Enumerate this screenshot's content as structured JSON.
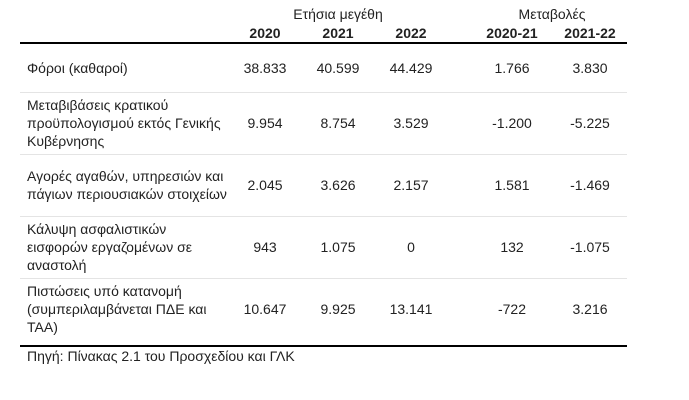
{
  "table": {
    "group_headers": [
      "Ετήσια μεγέθη",
      "Μεταβολές"
    ],
    "columns": [
      "2020",
      "2021",
      "2022",
      "2020-21",
      "2021-22"
    ],
    "rows": [
      [
        "Φόροι (καθαροί)",
        "38.833",
        "40.599",
        "44.429",
        "1.766",
        "3.830"
      ],
      [
        "Μεταβιβάσεις κρατικού προϋπολογισμού εκτός Γενικής Κυβέρνησης",
        "9.954",
        "8.754",
        "3.529",
        "-1.200",
        "-5.225"
      ],
      [
        "Αγορές αγαθών, υπηρεσιών και πάγιων περιουσιακών στοιχείων",
        "2.045",
        "3.626",
        "2.157",
        "1.581",
        "-1.469"
      ],
      [
        "Κάλυψη ασφαλιστικών εισφορών εργαζομένων σε αναστολή",
        "943",
        "1.075",
        "0",
        "132",
        "-1.075"
      ],
      [
        "Πιστώσεις υπό κατανομή (συμπεριλαμβάνεται ΠΔΕ και ΤΑΑ)",
        "10.647",
        "9.925",
        "13.141",
        "-722",
        "3.216"
      ]
    ],
    "source": "Πηγή: Πίνακας 2.1 του Προσχεδίου και ΓΛΚ"
  }
}
